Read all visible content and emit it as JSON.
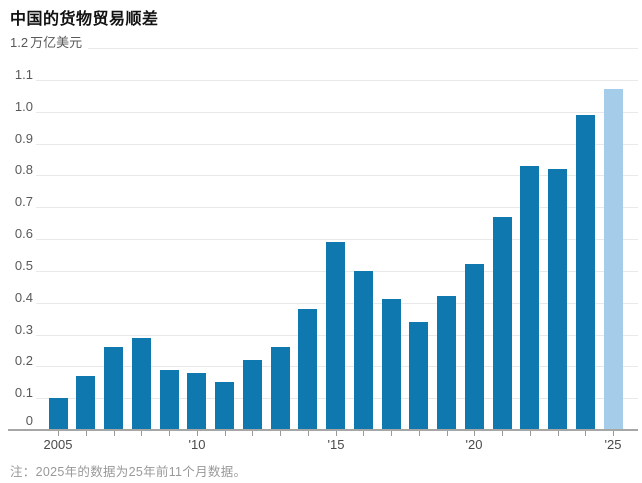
{
  "chart_data": {
    "type": "bar",
    "title": "中国的货物贸易顺差",
    "unit_label": "万亿美元",
    "note": "注：2025年的数据为25年前11个月数据。",
    "years": [
      2005,
      2006,
      2007,
      2008,
      2009,
      2010,
      2011,
      2012,
      2013,
      2014,
      2015,
      2016,
      2017,
      2018,
      2019,
      2020,
      2021,
      2022,
      2023,
      2024,
      2025
    ],
    "values": [
      0.1,
      0.17,
      0.26,
      0.29,
      0.19,
      0.18,
      0.15,
      0.22,
      0.26,
      0.38,
      0.59,
      0.5,
      0.41,
      0.34,
      0.42,
      0.52,
      0.67,
      0.83,
      0.82,
      0.99,
      1.07
    ],
    "highlight_year": 2025,
    "ylim": [
      0,
      1.2
    ],
    "ytick_labels": [
      "0",
      "0.1",
      "0.2",
      "0.3",
      "0.4",
      "0.5",
      "0.6",
      "0.7",
      "0.8",
      "0.9",
      "1.0",
      "1.1",
      "1.2"
    ],
    "xtick_labels": [
      {
        "year": 2005,
        "label": "2005"
      },
      {
        "year": 2010,
        "label": "'10"
      },
      {
        "year": 2015,
        "label": "'15"
      },
      {
        "year": 2020,
        "label": "'20"
      },
      {
        "year": 2025,
        "label": "'25"
      }
    ],
    "grid": true,
    "legend": "none",
    "colors": {
      "bar": "#0f78af",
      "bar_highlight": "#a5cde9",
      "gridline": "#e9e9e9",
      "axis": "#a6a6a6",
      "axis_text": "#595959",
      "note_text": "#999999",
      "title_text": "#111111"
    }
  }
}
